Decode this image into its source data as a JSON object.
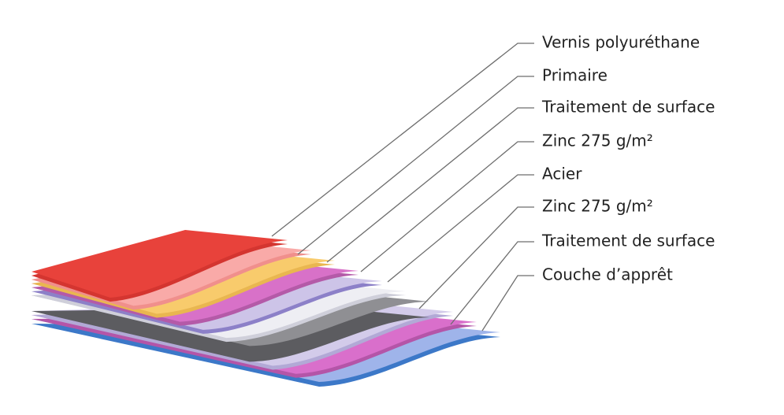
{
  "labels": [
    "Vernis polyuréthane",
    "Primaire",
    "Traitement de surface",
    "Zinc 275 g/m²",
    "Acier",
    "Zinc 275 g/m²",
    "Traitement de surface",
    "Couche d’apprêt"
  ]
}
